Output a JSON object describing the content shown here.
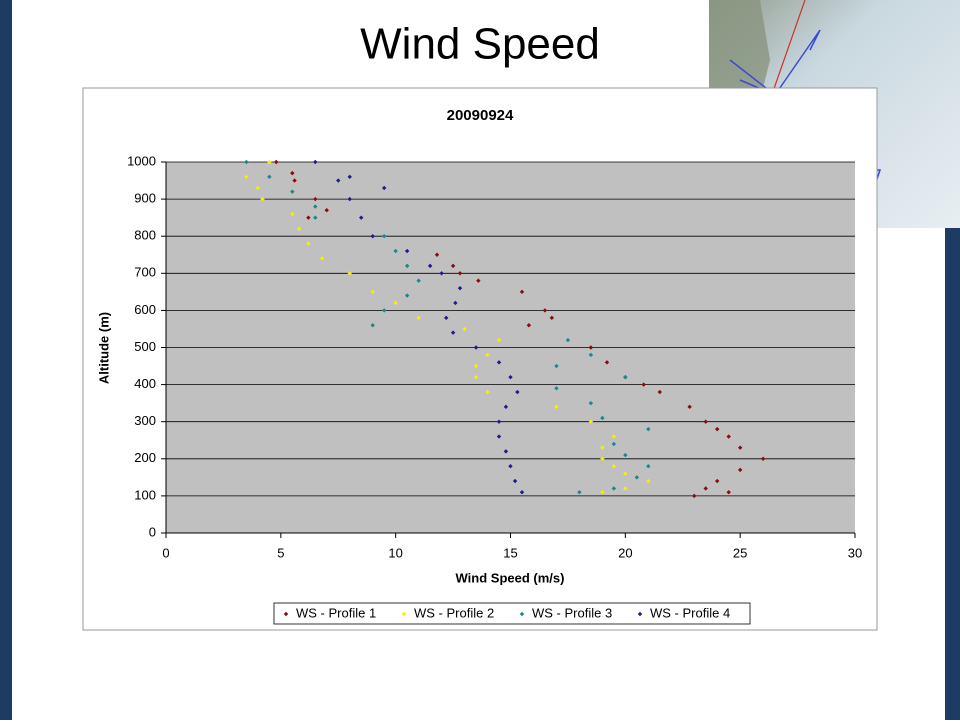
{
  "slide": {
    "title": "Wind Speed"
  },
  "chart_data": {
    "type": "scatter",
    "title": "20090924",
    "x_label": "Wind Speed (m/s)",
    "y_label": "Altitude (m)",
    "xlim": [
      0,
      30
    ],
    "xticks": [
      0,
      5,
      10,
      15,
      20,
      25,
      30
    ],
    "ylim": [
      0,
      1000
    ],
    "yticks": [
      0,
      100,
      200,
      300,
      400,
      500,
      600,
      700,
      800,
      900,
      1000
    ],
    "grid": true,
    "legend": "bottom",
    "series": [
      {
        "name": "WS - Profile 1",
        "color": "#8b0a0a",
        "x": [
          4.8,
          5.5,
          5.6,
          6.5,
          7.0,
          6.2,
          11.8,
          12.5,
          12.8,
          13.6,
          15.5,
          16.5,
          15.8,
          16.8,
          18.5,
          19.2,
          20.0,
          20.8,
          21.5,
          22.8,
          23.5,
          24.0,
          24.5,
          25.0,
          26.0,
          25.0,
          24.0,
          23.5,
          23.0,
          24.5
        ],
        "values": [
          1000,
          970,
          950,
          900,
          870,
          850,
          750,
          720,
          700,
          680,
          650,
          600,
          560,
          580,
          500,
          460,
          420,
          400,
          380,
          340,
          300,
          280,
          260,
          230,
          200,
          170,
          140,
          120,
          100,
          110
        ]
      },
      {
        "name": "WS - Profile 2",
        "color": "#f5f000",
        "x": [
          4.5,
          3.5,
          4.0,
          4.2,
          5.5,
          5.8,
          6.2,
          6.8,
          8.0,
          9.0,
          10.0,
          11.0,
          13.0,
          14.5,
          14.0,
          13.5,
          13.5,
          14.0,
          17.0,
          18.5,
          19.5,
          19.0,
          19.0,
          19.5,
          20.0,
          21.0,
          20.0,
          19.0
        ],
        "values": [
          1000,
          960,
          930,
          900,
          860,
          820,
          780,
          740,
          700,
          650,
          620,
          580,
          550,
          520,
          480,
          450,
          420,
          380,
          340,
          300,
          260,
          230,
          200,
          180,
          160,
          140,
          120,
          110
        ]
      },
      {
        "name": "WS - Profile 3",
        "color": "#148a8a",
        "x": [
          3.5,
          4.5,
          5.5,
          6.5,
          6.5,
          9.5,
          10.0,
          10.5,
          11.0,
          10.5,
          9.5,
          9.0,
          17.5,
          18.5,
          17.0,
          20.0,
          17.0,
          18.5,
          19.0,
          21.0,
          19.5,
          20.0,
          21.0,
          20.5,
          19.5,
          18.0
        ],
        "values": [
          1000,
          960,
          920,
          880,
          850,
          800,
          760,
          720,
          680,
          640,
          600,
          560,
          520,
          480,
          450,
          420,
          390,
          350,
          310,
          280,
          240,
          210,
          180,
          150,
          120,
          110
        ]
      },
      {
        "name": "WS - Profile 4",
        "color": "#1c1c8e",
        "x": [
          6.5,
          8.0,
          7.5,
          9.5,
          8.0,
          8.5,
          9.0,
          10.5,
          11.5,
          12.0,
          12.8,
          12.6,
          12.2,
          12.5,
          13.5,
          14.5,
          15.0,
          15.3,
          14.8,
          14.5,
          14.5,
          14.8,
          15.0,
          15.2,
          15.5
        ],
        "values": [
          1000,
          960,
          950,
          930,
          900,
          850,
          800,
          760,
          720,
          700,
          660,
          620,
          580,
          540,
          500,
          460,
          420,
          380,
          340,
          300,
          260,
          220,
          180,
          140,
          110
        ]
      }
    ]
  }
}
